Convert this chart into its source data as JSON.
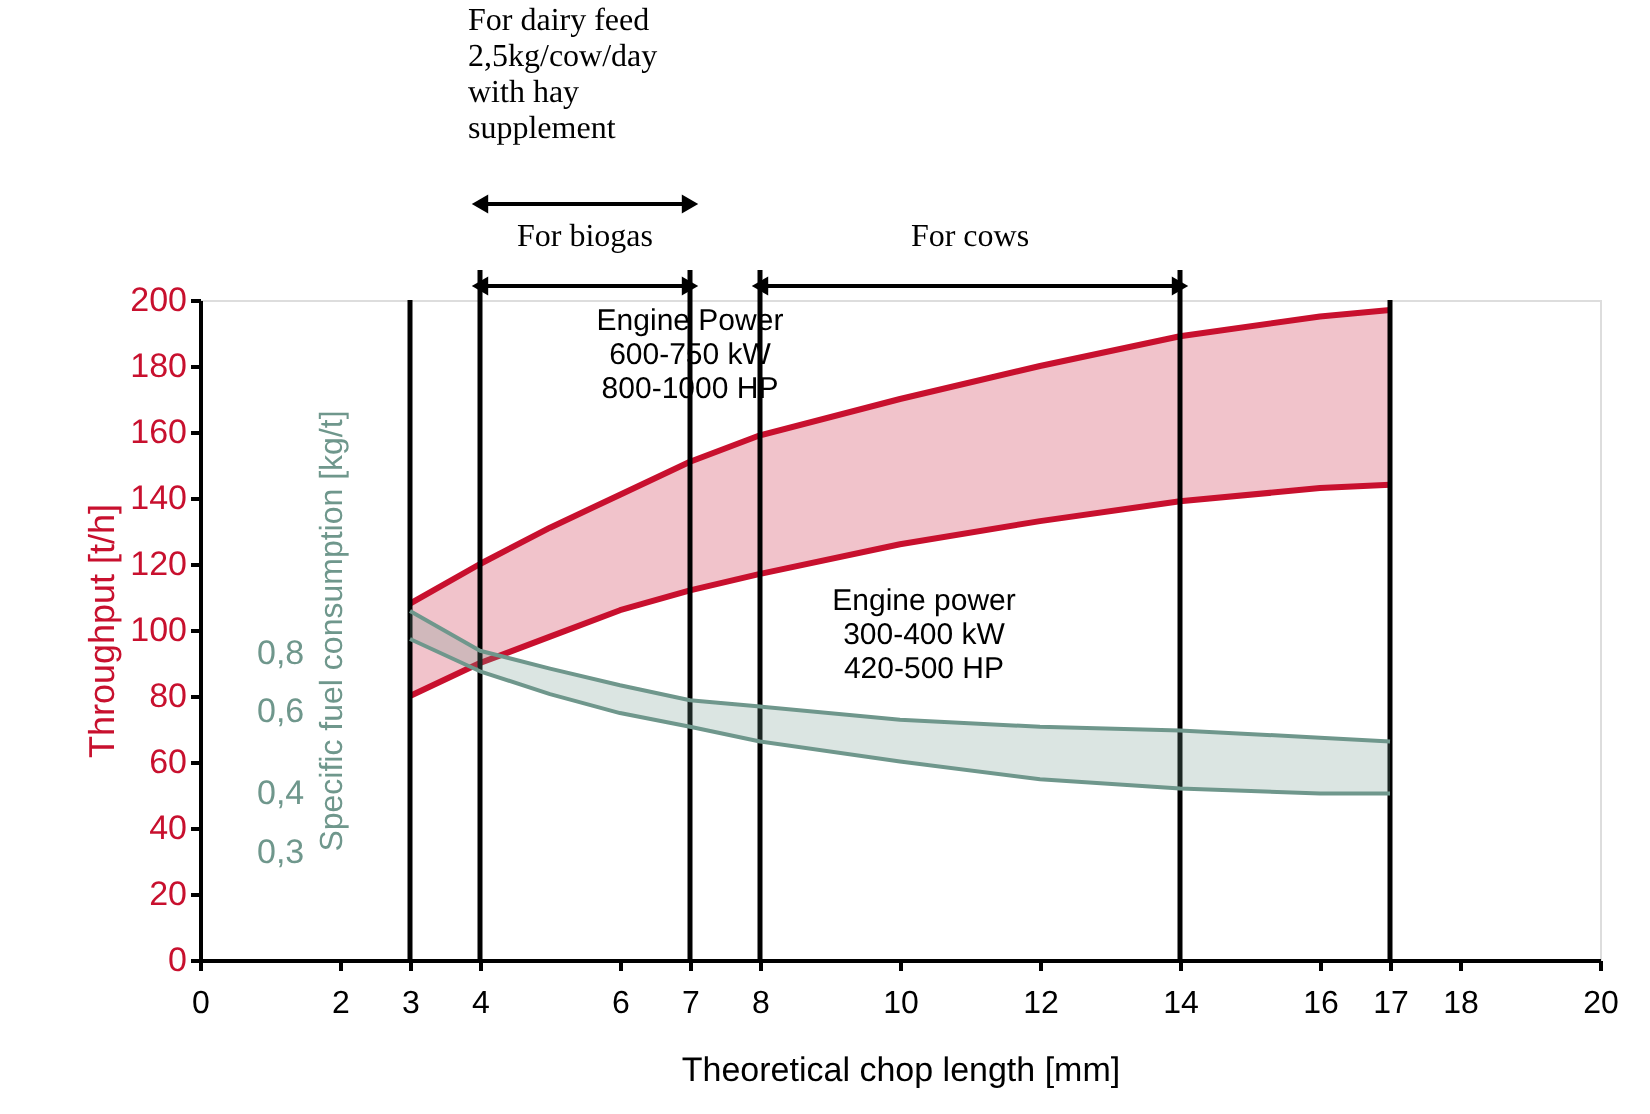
{
  "chart_data": {
    "type": "line",
    "xlabel": "Theoretical chop length [mm]",
    "ylabel": "Throughput [t/h]",
    "y2label": "Specific fuel consumption [kg/t]",
    "x": [
      3,
      4,
      5,
      6,
      7,
      8,
      10,
      12,
      14,
      16,
      17
    ],
    "series": [
      {
        "color": "#c8102e",
        "axis": "y",
        "values": [
          108,
          120,
          131,
          141,
          151,
          159,
          170,
          180,
          189,
          195,
          197
        ],
        "lower": [
          80,
          90,
          98,
          106,
          112,
          117,
          126,
          133,
          139,
          143,
          144
        ],
        "upper": [
          108,
          120,
          131,
          141,
          151,
          159,
          170,
          180,
          189,
          195,
          197
        ]
      },
      {
        "color": "#c8102e",
        "axis": "y",
        "values": [
          80,
          90,
          98,
          106,
          112,
          117,
          126,
          133,
          139,
          143,
          144
        ]
      },
      {
        "color": "#6f978c",
        "axis": "y2",
        "values": [
          1.01,
          0.83,
          0.76,
          0.7,
          0.65,
          0.63,
          0.59,
          0.57,
          0.56,
          0.54,
          0.53
        ],
        "lower": [
          0.88,
          0.75,
          0.67,
          0.61,
          0.57,
          0.53,
          0.48,
          0.44,
          0.42,
          0.41,
          0.41
        ],
        "upper": [
          1.01,
          0.83,
          0.76,
          0.7,
          0.65,
          0.63,
          0.59,
          0.57,
          0.56,
          0.54,
          0.53
        ]
      },
      {
        "color": "#6f978c",
        "axis": "y2",
        "values": [
          0.88,
          0.75,
          0.67,
          0.61,
          0.57,
          0.53,
          0.48,
          0.44,
          0.42,
          0.41,
          0.41
        ]
      }
    ],
    "xlim": [
      0,
      20
    ],
    "xticks": [
      0,
      2,
      3,
      4,
      6,
      7,
      8,
      10,
      12,
      14,
      16,
      17,
      18,
      20
    ],
    "ylim": [
      0,
      200
    ],
    "yticks": [
      0,
      20,
      40,
      60,
      80,
      100,
      120,
      140,
      160,
      180,
      200
    ],
    "y2lim": [
      0.18,
      4.7
    ],
    "y2ticks": [
      {
        "value": 0.3,
        "label": "0,3"
      },
      {
        "value": 0.4,
        "label": "0,4"
      },
      {
        "value": 0.6,
        "label": "0,6"
      },
      {
        "value": 0.8,
        "label": "0,8"
      }
    ],
    "log": "y2",
    "ref_lines": [
      {
        "axis": "x",
        "value": 3,
        "color": "#000000"
      },
      {
        "axis": "x",
        "value": 4,
        "color": "#000000"
      },
      {
        "axis": "x",
        "value": 7,
        "color": "#000000"
      },
      {
        "axis": "x",
        "value": 8,
        "color": "#000000"
      },
      {
        "axis": "x",
        "value": 14,
        "color": "#000000"
      },
      {
        "axis": "x",
        "value": 17,
        "color": "#000000"
      }
    ],
    "annotations": [
      "For dairy feed\n2,5kg/cow/day\nwith hay\nsupplement",
      "For biogas",
      "For cows",
      "Engine Power\n600-750 kW\n800-1000 HP",
      "Engine power\n300-400 kW\n420-500 HP"
    ],
    "grid": false
  }
}
